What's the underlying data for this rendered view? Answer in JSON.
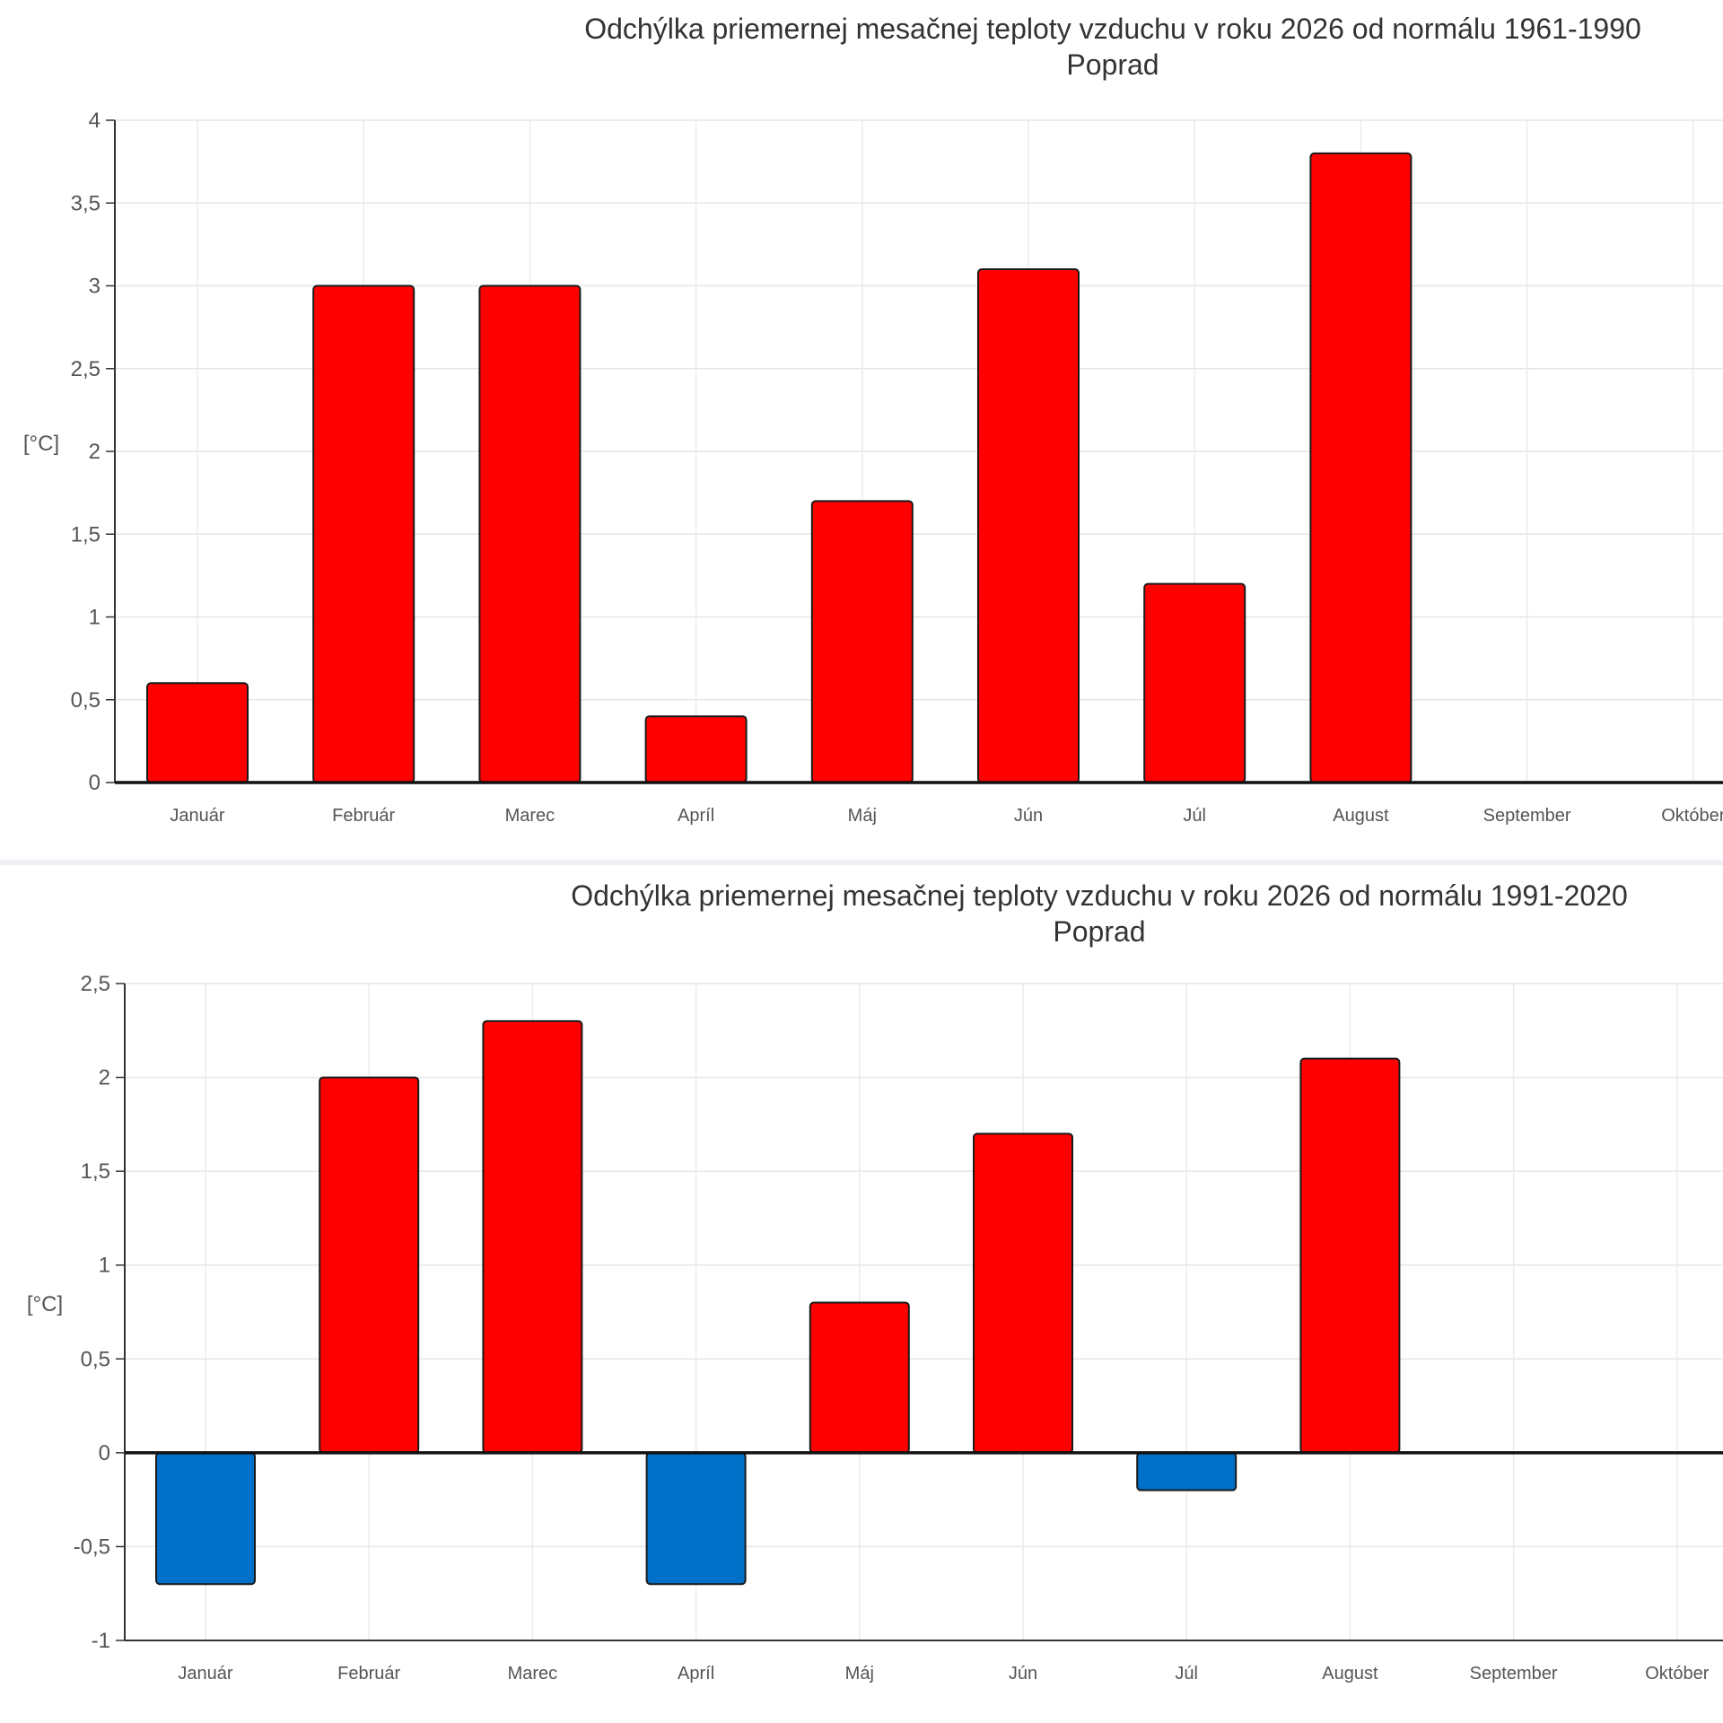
{
  "chart_data": [
    {
      "type": "bar",
      "title": "Odchýlka priemernej mesačnej teploty vzduchu v roku 2026 od normálu 1961-1990",
      "subtitle": "Poprad",
      "ylabel": "[°C]",
      "categories": [
        "Január",
        "Február",
        "Marec",
        "Apríl",
        "Máj",
        "Jún",
        "Júl",
        "August",
        "September",
        "Október"
      ],
      "values": [
        0.6,
        3.0,
        3.0,
        0.4,
        1.7,
        3.1,
        1.2,
        3.8,
        null,
        null
      ],
      "ylim": [
        0,
        4
      ],
      "yticks": [
        0,
        0.5,
        1,
        1.5,
        2,
        2.5,
        3,
        3.5,
        4
      ],
      "ytick_labels": [
        "0",
        "0,5",
        "1",
        "1,5",
        "2",
        "2,5",
        "3",
        "3,5",
        "4"
      ],
      "grid": true,
      "colors": {
        "positive": "#ff0000",
        "negative": "#0070c8",
        "outline": "#1a1a1a"
      }
    },
    {
      "type": "bar",
      "title": "Odchýlka priemernej mesačnej teploty vzduchu v roku 2026 od normálu 1991-2020",
      "subtitle": "Poprad",
      "ylabel": "[°C]",
      "categories": [
        "Január",
        "Február",
        "Marec",
        "Apríl",
        "Máj",
        "Jún",
        "Júl",
        "August",
        "September",
        "Október"
      ],
      "values": [
        -0.7,
        2.0,
        2.3,
        -0.7,
        0.8,
        1.7,
        -0.2,
        2.1,
        null,
        null
      ],
      "ylim": [
        -1,
        2.5
      ],
      "yticks": [
        -1,
        -0.5,
        0,
        0.5,
        1,
        1.5,
        2,
        2.5
      ],
      "ytick_labels": [
        "-1",
        "-0,5",
        "0",
        "0,5",
        "1",
        "1,5",
        "2",
        "2,5"
      ],
      "grid": true,
      "colors": {
        "positive": "#ff0000",
        "negative": "#0070c8",
        "outline": "#1a1a1a"
      }
    }
  ]
}
